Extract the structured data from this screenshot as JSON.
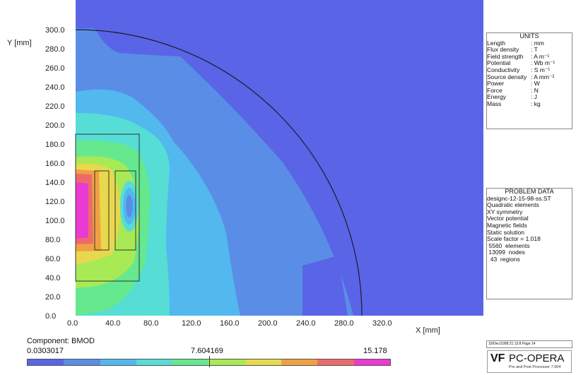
{
  "plot": {
    "y_label": "Y [mm]",
    "x_label": "X [mm]",
    "x_ticks": [
      "0.0",
      "40.0",
      "80.0",
      "120.0",
      "160.0",
      "200.0",
      "240.0",
      "280.0",
      "320.0"
    ],
    "y_ticks": [
      "0.0",
      "20.0",
      "40.0",
      "60.0",
      "80.0",
      "100.0",
      "120.0",
      "140.0",
      "160.0",
      "180.0",
      "200.0",
      "220.0",
      "240.0",
      "260.0",
      "280.0",
      "300.0"
    ],
    "colors": {
      "background_field": "#5a64e6",
      "band1": "#5a8ee6",
      "band2": "#52b8ee",
      "band3": "#56ddd6",
      "band4": "#66e88e",
      "band5": "#a8ea55",
      "band6": "#e8d84e",
      "band7": "#f0a042",
      "band8": "#ee6a6a",
      "band9": "#ea3ad2"
    }
  },
  "units_panel": {
    "title": "UNITS",
    "rows": [
      {
        "k": "Length",
        "v": ": mm"
      },
      {
        "k": "Flux density",
        "v": ": T"
      },
      {
        "k": "Field strength",
        "v": ": A m⁻¹"
      },
      {
        "k": "Potential",
        "v": ": Wb m⁻¹"
      },
      {
        "k": "Conductivity",
        "v": ": S m⁻¹"
      },
      {
        "k": "Source density",
        "v": ": A mm⁻²"
      },
      {
        "k": "Power",
        "v": ": W"
      },
      {
        "k": "Force",
        "v": ": N"
      },
      {
        "k": "Energy",
        "v": ": J"
      },
      {
        "k": "Mass",
        "v": ": kg"
      }
    ]
  },
  "problem_panel": {
    "title": "PROBLEM DATA",
    "lines": [
      "designc-12-15-98-ss.ST",
      "Quadratic elements",
      "XY symmetry",
      "Vector potential",
      "Magnetic fields",
      "Static solution",
      "Scale factor = 1.018",
      " 5560  elements",
      " 13099  nodes",
      "  43  regions"
    ]
  },
  "date_box": "19/Dec/1998 21:13:8 Page 14",
  "logo": {
    "brand": "PC-OPERA",
    "sub": "Pre and Post Processor 7.004"
  },
  "colorbar": {
    "label": "Component: BMOD",
    "min": "0.0303017",
    "mid": "7.604169",
    "max": "15.178",
    "colors": [
      "#5a64e6",
      "#5a8ee6",
      "#52b8ee",
      "#56ddd6",
      "#66e88e",
      "#a8ea55",
      "#e8d84e",
      "#f0a042",
      "#ee6a6a",
      "#ea3ad2"
    ]
  }
}
